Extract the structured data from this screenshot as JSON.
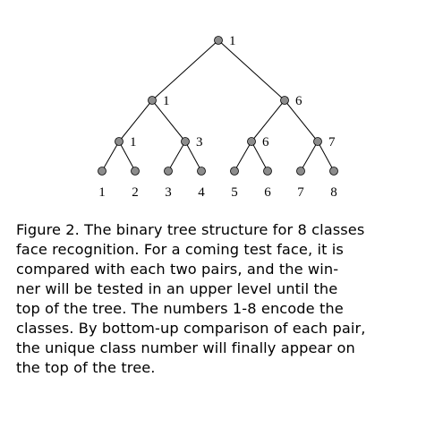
{
  "figure": {
    "tree": {
      "level0": [
        {
          "label": "1"
        }
      ],
      "level1": [
        {
          "label": "1"
        },
        {
          "label": "6"
        }
      ],
      "level2": [
        {
          "label": "1"
        },
        {
          "label": "3"
        },
        {
          "label": "6"
        },
        {
          "label": "7"
        }
      ],
      "leaves": [
        {
          "label": "1"
        },
        {
          "label": "2"
        },
        {
          "label": "3"
        },
        {
          "label": "4"
        },
        {
          "label": "5"
        },
        {
          "label": "6"
        },
        {
          "label": "7"
        },
        {
          "label": "8"
        }
      ]
    },
    "colors": {
      "node_fill": "#8c8c8c",
      "node_stroke": "#000000",
      "edge": "#000000"
    }
  },
  "caption": {
    "lines": [
      "Figure 2. The binary tree structure for 8 classes",
      "face recognition.  For a coming test face, it is",
      "compared with each two pairs, and the win-",
      "ner will be tested in an upper level until the",
      "top of the tree.  The numbers 1-8 encode the",
      "classes. By bottom-up comparison of each pair,",
      "the unique class number will finally appear on",
      "the top of the tree."
    ]
  }
}
